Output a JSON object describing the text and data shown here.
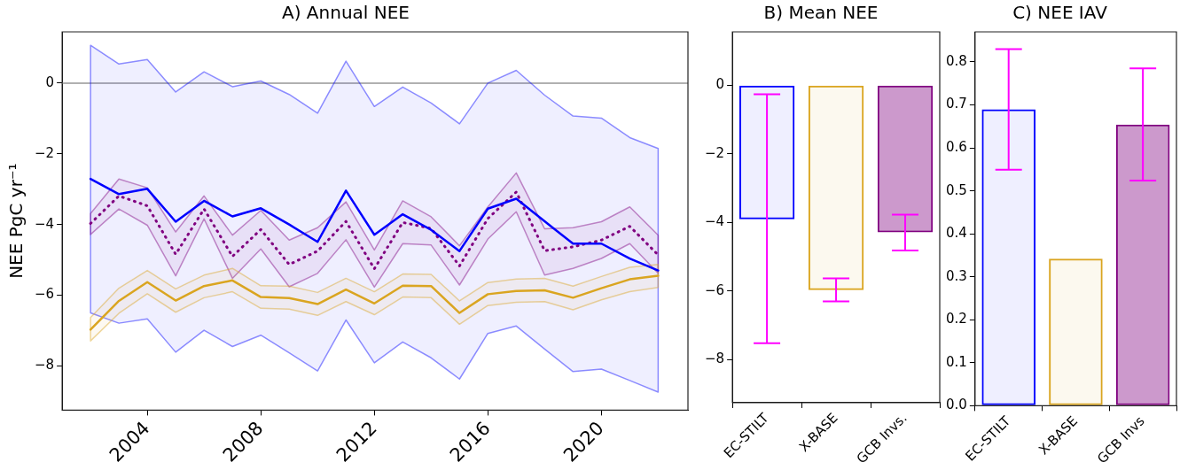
{
  "chart_data": [
    {
      "type": "line",
      "title": "A) Annual NEE",
      "ylabel": "NEE PgC yr⁻¹",
      "x": [
        2002,
        2003,
        2004,
        2005,
        2006,
        2007,
        2008,
        2009,
        2010,
        2011,
        2012,
        2013,
        2014,
        2015,
        2016,
        2017,
        2018,
        2019,
        2020,
        2021,
        2022
      ],
      "xlim": [
        2001,
        2023.05
      ],
      "xticks": [
        2004,
        2008,
        2012,
        2016,
        2020
      ],
      "ylim": [
        -9.25,
        1.45
      ],
      "yticks": [
        -8,
        -6,
        -4,
        -2,
        0
      ],
      "ref_lines": [
        {
          "axis": "y",
          "value": 0,
          "color": "#b0b0b0"
        }
      ],
      "series": [
        {
          "color": "#0000ff",
          "line_style": "solid",
          "values": [
            -2.71,
            -3.14,
            -2.99,
            -3.92,
            -3.33,
            -3.77,
            -3.54,
            -4.0,
            -4.49,
            -3.04,
            -4.29,
            -3.71,
            -4.15,
            -4.75,
            -3.55,
            -3.27,
            -3.91,
            -4.54,
            -4.54,
            -4.96,
            -5.3
          ],
          "lower": [
            -6.5,
            -6.79,
            -6.67,
            -7.61,
            -6.99,
            -7.45,
            -7.13,
            -7.63,
            -8.14,
            -6.7,
            -7.91,
            -7.32,
            -7.77,
            -8.37,
            -7.08,
            -6.87,
            -7.52,
            -8.16,
            -8.09,
            -8.41,
            -8.74
          ],
          "upper": [
            1.07,
            0.54,
            0.67,
            -0.25,
            0.32,
            -0.1,
            0.06,
            -0.32,
            -0.85,
            0.62,
            -0.66,
            -0.11,
            -0.56,
            -1.15,
            0.0,
            0.36,
            -0.34,
            -0.93,
            -0.99,
            -1.54,
            -1.85
          ]
        },
        {
          "color": "#800080",
          "line_style": "dotted",
          "values": [
            -3.97,
            -3.19,
            -3.47,
            -4.84,
            -3.56,
            -4.9,
            -4.14,
            -5.13,
            -4.75,
            -3.91,
            -5.25,
            -3.94,
            -4.11,
            -5.17,
            -3.83,
            -3.08,
            -4.74,
            -4.63,
            -4.44,
            -4.05,
            -4.86
          ],
          "lower": [
            -4.28,
            -3.56,
            -4.02,
            -5.45,
            -3.84,
            -5.52,
            -4.69,
            -5.76,
            -5.38,
            -4.43,
            -5.77,
            -4.54,
            -4.58,
            -5.71,
            -4.41,
            -3.64,
            -5.43,
            -5.24,
            -4.96,
            -4.54,
            -5.38
          ],
          "upper": [
            -3.69,
            -2.71,
            -2.96,
            -4.21,
            -3.19,
            -4.3,
            -3.6,
            -4.44,
            -4.09,
            -3.36,
            -4.72,
            -3.33,
            -3.78,
            -4.6,
            -3.5,
            -2.54,
            -4.12,
            -4.09,
            -3.92,
            -3.5,
            -4.3
          ]
        },
        {
          "color": "#daa520",
          "line_style": "solid",
          "values": [
            -6.97,
            -6.16,
            -5.63,
            -6.15,
            -5.74,
            -5.58,
            -6.05,
            -6.08,
            -6.25,
            -5.84,
            -6.23,
            -5.73,
            -5.74,
            -6.5,
            -5.97,
            -5.88,
            -5.86,
            -6.07,
            -5.8,
            -5.55,
            -5.45
          ],
          "lower": [
            -7.29,
            -6.51,
            -5.96,
            -6.48,
            -6.07,
            -5.9,
            -6.37,
            -6.39,
            -6.57,
            -6.18,
            -6.55,
            -6.05,
            -6.07,
            -6.82,
            -6.29,
            -6.2,
            -6.18,
            -6.41,
            -6.13,
            -5.9,
            -5.78
          ],
          "upper": [
            -6.63,
            -5.8,
            -5.3,
            -5.82,
            -5.43,
            -5.24,
            -5.73,
            -5.74,
            -5.92,
            -5.52,
            -5.9,
            -5.4,
            -5.41,
            -6.16,
            -5.64,
            -5.54,
            -5.52,
            -5.74,
            -5.47,
            -5.21,
            -5.13
          ]
        }
      ]
    },
    {
      "type": "bar",
      "title": "B) Mean NEE",
      "categories": [
        "EC-STILT",
        "X-BASE",
        "GCB Invs."
      ],
      "values": [
        -3.91,
        -5.97,
        -4.29
      ],
      "colors": [
        "#0000ff",
        "#daa520",
        "#800080"
      ],
      "errors": [
        [
          -7.52,
          -0.27
        ],
        [
          -6.3,
          -5.63
        ],
        [
          -4.82,
          -3.77
        ]
      ],
      "ylim": [
        -9.25,
        1.55
      ],
      "yticks": [
        -8,
        -6,
        -4,
        -2,
        0
      ]
    },
    {
      "type": "bar",
      "title": "C) NEE IAV",
      "categories": [
        "EC-STILT",
        "X-BASE",
        "GCB Invs"
      ],
      "values": [
        0.69,
        0.342,
        0.654
      ],
      "colors": [
        "#0000ff",
        "#daa520",
        "#800080"
      ],
      "errors": [
        [
          0.549,
          0.83
        ],
        null,
        [
          0.524,
          0.785
        ]
      ],
      "ylim": [
        0,
        0.87
      ],
      "yticks": [
        {
          "value": 0,
          "label": "0.0"
        },
        {
          "value": 0.1,
          "label": "0.1"
        },
        {
          "value": 0.2,
          "label": "0.2"
        },
        {
          "value": 0.3,
          "label": "0.3"
        },
        {
          "value": 0.4,
          "label": "0.4"
        },
        {
          "value": 0.5,
          "label": "0.5"
        },
        {
          "value": 0.6,
          "label": "0.6"
        },
        {
          "value": 0.7,
          "label": "0.7"
        },
        {
          "value": 0.8,
          "label": "0.8"
        }
      ]
    }
  ]
}
